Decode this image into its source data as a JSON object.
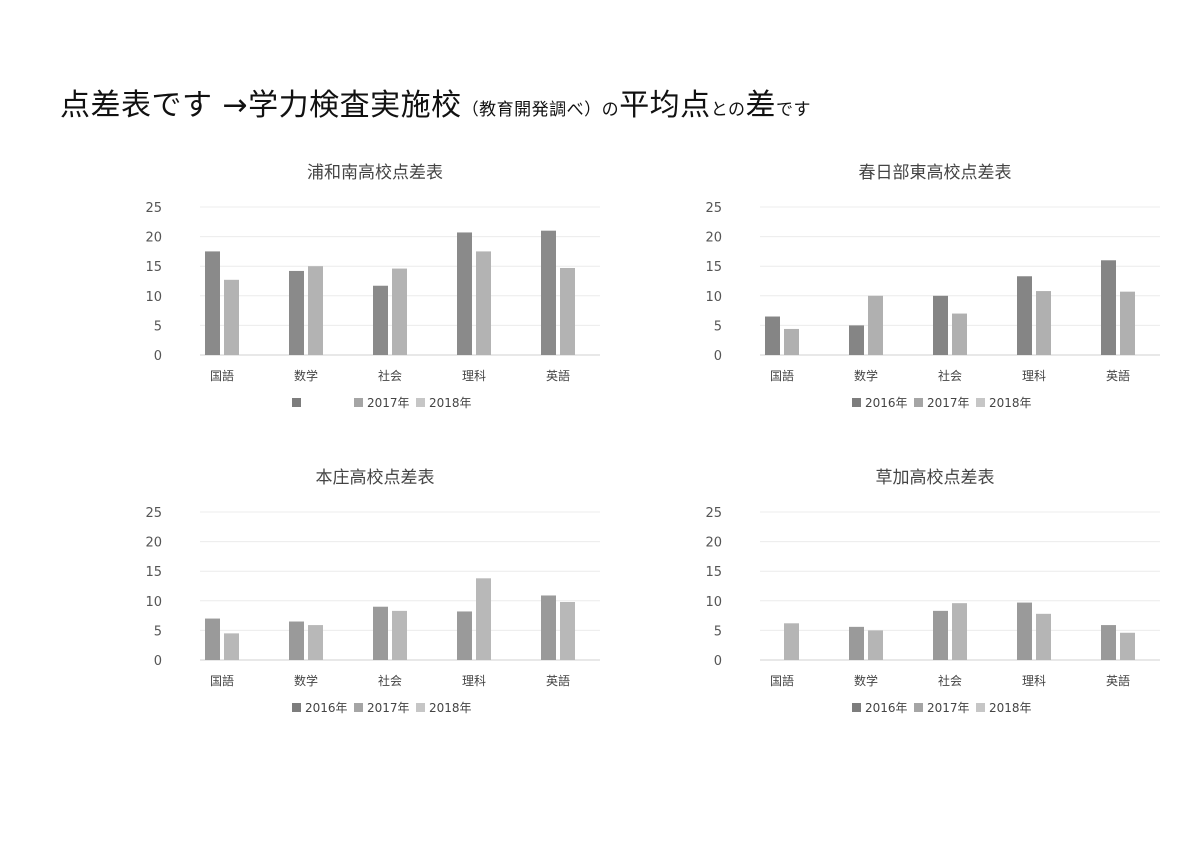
{
  "header": {
    "title_part1": "点差表です →学力検査実施校",
    "title_part2": "（教育開発調べ）の",
    "title_part3": "平均点",
    "title_part4": "との",
    "title_part5": "差",
    "title_part6": "です"
  },
  "chart_data": [
    {
      "type": "bar",
      "title": "浦和南高校点差表",
      "categories": [
        "国語",
        "数学",
        "社会",
        "理科",
        "英語"
      ],
      "ylim": [
        0,
        25
      ],
      "yticks": [
        0,
        5,
        10,
        15,
        20,
        25
      ],
      "grid": true,
      "legend": "bottom",
      "legend_labels": [
        "",
        "2017年",
        "2018年"
      ],
      "series": [
        {
          "name": "",
          "color": "#8a8a8a",
          "values": [
            17.5,
            14.2,
            11.7,
            20.7,
            21.0
          ]
        },
        {
          "name": "",
          "color": "#b3b3b3",
          "values": [
            12.7,
            15.0,
            14.6,
            17.5,
            14.7
          ]
        }
      ]
    },
    {
      "type": "bar",
      "title": "春日部東高校点差表",
      "categories": [
        "国語",
        "数学",
        "社会",
        "理科",
        "英語"
      ],
      "ylim": [
        0,
        25
      ],
      "yticks": [
        0,
        5,
        10,
        15,
        20,
        25
      ],
      "grid": true,
      "legend": "bottom",
      "legend_labels": [
        "2016年",
        "2017年",
        "2018年"
      ],
      "series": [
        {
          "name": "",
          "color": "#858585",
          "values": [
            6.5,
            5.0,
            10.0,
            13.3,
            16.0
          ]
        },
        {
          "name": "",
          "color": "#b0b0b0",
          "values": [
            4.4,
            10.0,
            7.0,
            10.8,
            10.7
          ]
        }
      ]
    },
    {
      "type": "bar",
      "title": "本庄高校点差表",
      "categories": [
        "国語",
        "数学",
        "社会",
        "理科",
        "英語"
      ],
      "ylim": [
        0,
        25
      ],
      "yticks": [
        0,
        5,
        10,
        15,
        20,
        25
      ],
      "grid": true,
      "legend": "bottom",
      "legend_labels": [
        "2016年",
        "2017年",
        "2018年"
      ],
      "series": [
        {
          "name": "",
          "color": "#9a9a9a",
          "values": [
            7.0,
            6.5,
            9.0,
            8.2,
            10.9
          ]
        },
        {
          "name": "",
          "color": "#b8b8b8",
          "values": [
            4.5,
            5.9,
            8.3,
            13.8,
            9.8
          ]
        }
      ]
    },
    {
      "type": "bar",
      "title": "草加高校点差表",
      "categories": [
        "国語",
        "数学",
        "社会",
        "理科",
        "英語"
      ],
      "ylim": [
        0,
        25
      ],
      "yticks": [
        0,
        5,
        10,
        15,
        20,
        25
      ],
      "grid": true,
      "legend": "bottom",
      "legend_labels": [
        "2016年",
        "2017年",
        "2018年"
      ],
      "series": [
        {
          "name": "",
          "color": "#9a9a9a",
          "values": [
            null,
            5.6,
            8.3,
            9.7,
            5.9
          ]
        },
        {
          "name": "",
          "color": "#b5b5b5",
          "values": [
            6.2,
            5.0,
            9.6,
            7.8,
            4.6
          ]
        }
      ]
    }
  ],
  "legend_colors": [
    "#7d7d7d",
    "#a5a5a5",
    "#c6c6c6"
  ]
}
